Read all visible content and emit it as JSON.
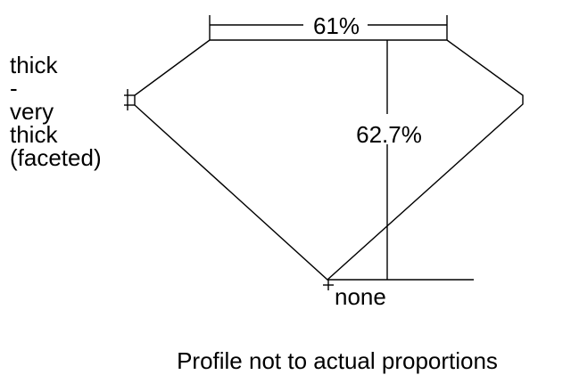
{
  "girdle_label": [
    "thick",
    "-",
    "very",
    "thick",
    "(faceted)"
  ],
  "table_percent": "61%",
  "depth_percent": "62.7%",
  "culet_label": "none",
  "caption": "Profile not to actual proportions",
  "line_color": "#000000"
}
